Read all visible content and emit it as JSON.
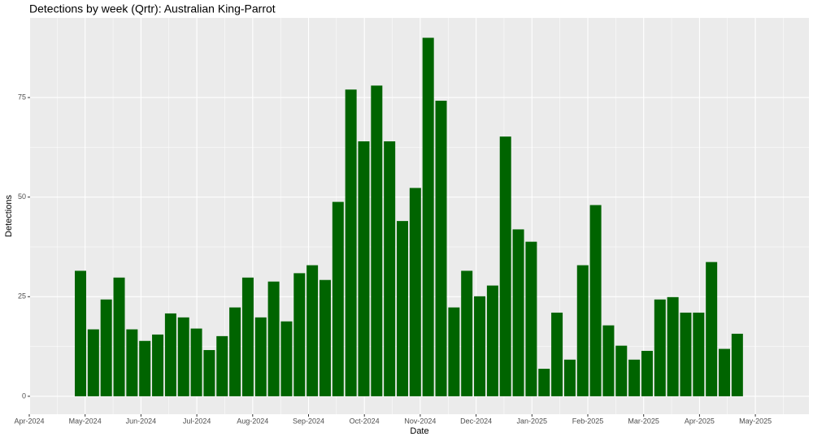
{
  "chart_data": {
    "type": "bar",
    "title": "Detections by week (Qrtr): Australian King-Parrot",
    "x_label": "Date",
    "y_label": "Detections",
    "categories": [
      null,
      null,
      null,
      null,
      null,
      null,
      null,
      null,
      null,
      null,
      null,
      null,
      null,
      null,
      null,
      null,
      null,
      null,
      null,
      null,
      null,
      null,
      null,
      null,
      null,
      null,
      null,
      null,
      null,
      null,
      null,
      null,
      null,
      null,
      null,
      null,
      null,
      null,
      null,
      null,
      null,
      null,
      null,
      null,
      null,
      null,
      null,
      null,
      null,
      null,
      null,
      null
    ],
    "values": [
      31.5,
      16.8,
      24.3,
      29.8,
      16.8,
      13.9,
      15.5,
      20.8,
      19.8,
      17,
      11.6,
      15.1,
      22.3,
      29.8,
      19.8,
      28.8,
      18.8,
      30.9,
      32.9,
      29.2,
      48.8,
      77,
      64,
      78,
      64,
      44,
      52.3,
      90,
      74.2,
      22.3,
      31.5,
      25.1,
      27.8,
      65.2,
      41.9,
      38.8,
      6.9,
      21,
      9.2,
      32.9,
      48,
      17.8,
      12.7,
      9.2,
      11.4,
      24.3,
      24.9,
      21,
      21,
      33.7,
      11.9,
      15.7
    ],
    "color": "#006400",
    "xticks": [
      "Apr-2024",
      "May-2024",
      "Jun-2024",
      "Jul-2024",
      "Aug-2024",
      "Sep-2024",
      "Oct-2024",
      "Nov-2024",
      "Dec-2024",
      "Jan-2025",
      "Feb-2025",
      "Mar-2025",
      "Apr-2025",
      "May-2025"
    ],
    "ylim": [
      -4.5,
      95
    ],
    "yticks": [
      0,
      25,
      50,
      75
    ],
    "grid": true
  }
}
